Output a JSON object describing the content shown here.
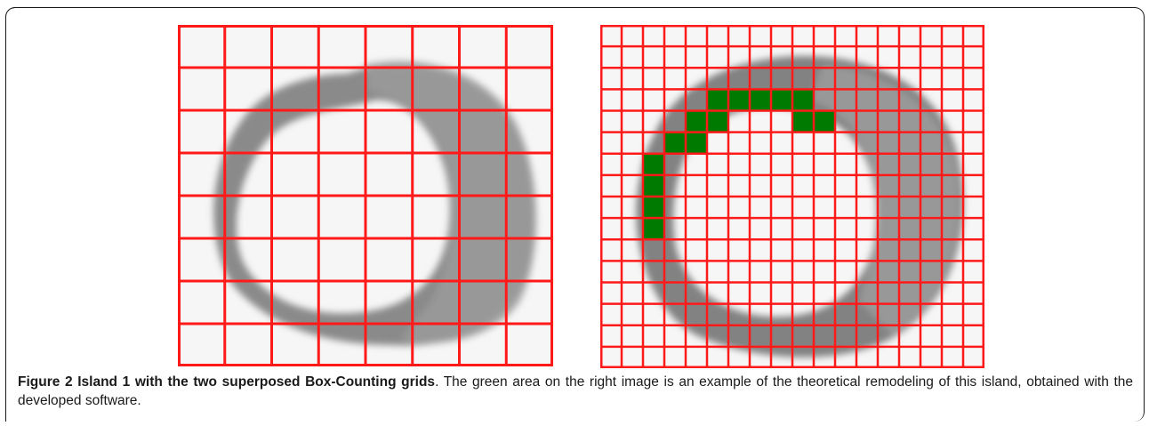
{
  "figure": {
    "label": "Figure 2",
    "title": "Island 1 with the two superposed Box-Counting grids",
    "description": ". The green area on the right image is an example of the theoretical remodeling of this island, obtained with the developed software."
  },
  "left_image": {
    "content": "grayscale microscopy image of a ring-shaped island",
    "grid_color": "#ff1a1a",
    "grid_columns": 8,
    "grid_rows": 8
  },
  "right_image": {
    "content": "same island with a finer box-counting grid and a highlighted remodeling region",
    "grid_color": "#ff1a1a",
    "highlight_color": "#007a00",
    "grid_columns": 18,
    "grid_rows": 16
  }
}
